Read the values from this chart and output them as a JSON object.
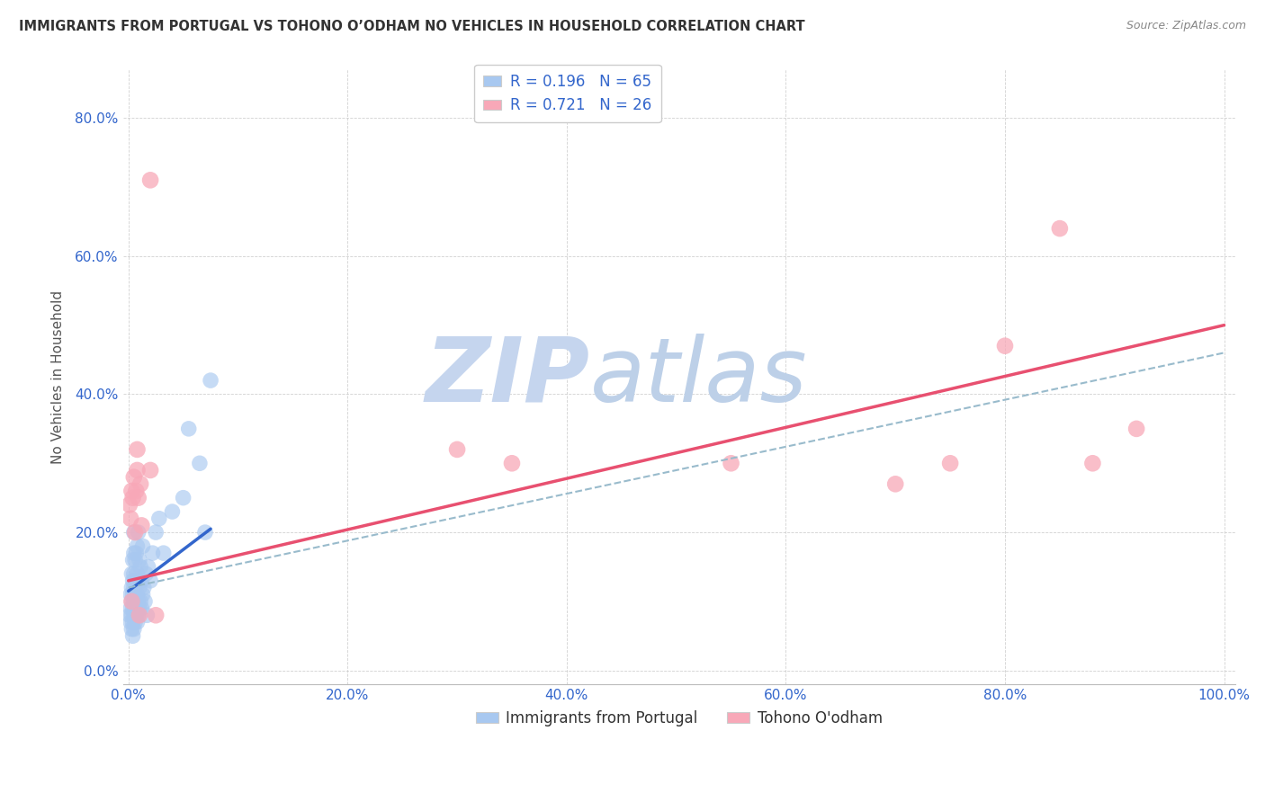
{
  "title": "IMMIGRANTS FROM PORTUGAL VS TOHONO O’ODHAM NO VEHICLES IN HOUSEHOLD CORRELATION CHART",
  "source": "Source: ZipAtlas.com",
  "ylabel": "No Vehicles in Household",
  "xlabel": "",
  "legend_label1": "Immigrants from Portugal",
  "legend_label2": "Tohono O'odham",
  "r1": 0.196,
  "n1": 65,
  "r2": 0.721,
  "n2": 26,
  "blue_color": "#A8C8F0",
  "pink_color": "#F8A8B8",
  "blue_line_color": "#3366CC",
  "pink_line_color": "#E85070",
  "dashed_line_color": "#99BBCC",
  "watermark_zip_color": "#C8D8F0",
  "watermark_atlas_color": "#C8D8E8",
  "title_color": "#333333",
  "axis_label_color": "#555555",
  "tick_color": "#3366CC",
  "r_text_color": "#3366CC",
  "n_text_color": "#3366CC",
  "source_color": "#888888",
  "xlim_min": -0.005,
  "xlim_max": 1.01,
  "ylim_min": -0.02,
  "ylim_max": 0.87,
  "blue_line_x0": 0.0,
  "blue_line_y0": 0.115,
  "blue_line_x1": 0.075,
  "blue_line_y1": 0.205,
  "pink_line_x0": 0.0,
  "pink_line_y0": 0.13,
  "pink_line_x1": 1.0,
  "pink_line_y1": 0.5,
  "dash_line_x0": 0.0,
  "dash_line_y0": 0.12,
  "dash_line_x1": 1.0,
  "dash_line_y1": 0.46,
  "blue_x": [
    0.001,
    0.002,
    0.002,
    0.002,
    0.003,
    0.003,
    0.003,
    0.003,
    0.003,
    0.004,
    0.004,
    0.004,
    0.004,
    0.004,
    0.004,
    0.005,
    0.005,
    0.005,
    0.005,
    0.005,
    0.005,
    0.005,
    0.006,
    0.006,
    0.006,
    0.006,
    0.006,
    0.007,
    0.007,
    0.007,
    0.007,
    0.008,
    0.008,
    0.008,
    0.008,
    0.008,
    0.009,
    0.009,
    0.009,
    0.009,
    0.01,
    0.01,
    0.01,
    0.011,
    0.011,
    0.012,
    0.012,
    0.013,
    0.013,
    0.014,
    0.015,
    0.016,
    0.017,
    0.018,
    0.02,
    0.022,
    0.025,
    0.028,
    0.032,
    0.04,
    0.05,
    0.055,
    0.065,
    0.07,
    0.075
  ],
  "blue_y": [
    0.08,
    0.07,
    0.09,
    0.11,
    0.06,
    0.08,
    0.1,
    0.12,
    0.14,
    0.05,
    0.07,
    0.09,
    0.11,
    0.13,
    0.16,
    0.06,
    0.08,
    0.1,
    0.12,
    0.14,
    0.17,
    0.2,
    0.07,
    0.09,
    0.11,
    0.13,
    0.16,
    0.08,
    0.1,
    0.13,
    0.17,
    0.07,
    0.09,
    0.11,
    0.14,
    0.18,
    0.08,
    0.1,
    0.13,
    0.2,
    0.09,
    0.12,
    0.16,
    0.1,
    0.15,
    0.09,
    0.13,
    0.11,
    0.18,
    0.12,
    0.1,
    0.14,
    0.08,
    0.15,
    0.13,
    0.17,
    0.2,
    0.22,
    0.17,
    0.23,
    0.25,
    0.35,
    0.3,
    0.2,
    0.42
  ],
  "pink_x": [
    0.001,
    0.002,
    0.003,
    0.003,
    0.004,
    0.005,
    0.006,
    0.007,
    0.008,
    0.008,
    0.009,
    0.01,
    0.011,
    0.012,
    0.02,
    0.025,
    0.02,
    0.3,
    0.35,
    0.55,
    0.7,
    0.75,
    0.8,
    0.85,
    0.88,
    0.92
  ],
  "pink_y": [
    0.24,
    0.22,
    0.26,
    0.1,
    0.25,
    0.28,
    0.2,
    0.26,
    0.29,
    0.32,
    0.25,
    0.08,
    0.27,
    0.21,
    0.29,
    0.08,
    0.71,
    0.32,
    0.3,
    0.3,
    0.27,
    0.3,
    0.47,
    0.64,
    0.3,
    0.35
  ]
}
